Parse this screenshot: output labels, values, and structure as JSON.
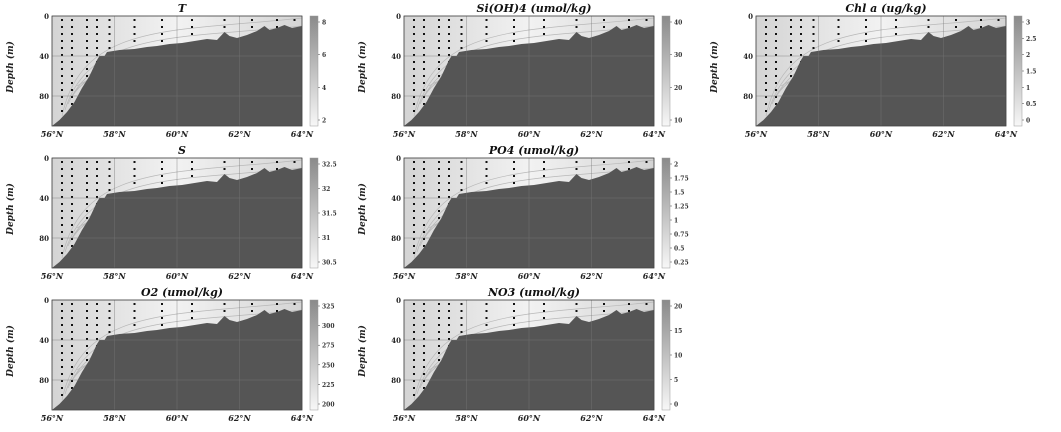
{
  "chart_data": [
    {
      "type": "heatmap",
      "title": "T",
      "ylabel": "Depth (m)",
      "x_ticks": [
        "56°N",
        "58°N",
        "60°N",
        "62°N",
        "64°N"
      ],
      "y_ticks": [
        "0",
        "40",
        "80"
      ],
      "colorbar_ticks": [
        "8",
        "6",
        "4",
        "2"
      ],
      "xlim": [
        56,
        64
      ],
      "ylim": [
        0,
        110
      ]
    },
    {
      "type": "heatmap",
      "title": "Si(OH)4 (umol/kg)",
      "ylabel": "Depth (m)",
      "x_ticks": [
        "56°N",
        "58°N",
        "60°N",
        "62°N",
        "64°N"
      ],
      "y_ticks": [
        "0",
        "40",
        "80"
      ],
      "colorbar_ticks": [
        "40",
        "30",
        "20",
        "10"
      ],
      "xlim": [
        56,
        64
      ],
      "ylim": [
        0,
        110
      ]
    },
    {
      "type": "heatmap",
      "title": "Chl a (ug/kg)",
      "ylabel": "Depth (m)",
      "x_ticks": [
        "56°N",
        "58°N",
        "60°N",
        "62°N",
        "64°N"
      ],
      "y_ticks": [
        "0",
        "40",
        "80"
      ],
      "colorbar_ticks": [
        "3",
        "2.5",
        "2",
        "1.5",
        "1",
        "0.5",
        "0"
      ],
      "xlim": [
        56,
        64
      ],
      "ylim": [
        0,
        110
      ]
    },
    {
      "type": "heatmap",
      "title": "S",
      "ylabel": "Depth (m)",
      "x_ticks": [
        "56°N",
        "58°N",
        "60°N",
        "62°N",
        "64°N"
      ],
      "y_ticks": [
        "0",
        "40",
        "80"
      ],
      "colorbar_ticks": [
        "32.5",
        "32",
        "31.5",
        "31",
        "30.5"
      ],
      "xlim": [
        56,
        64
      ],
      "ylim": [
        0,
        110
      ]
    },
    {
      "type": "heatmap",
      "title": "PO4 (umol/kg)",
      "ylabel": "Depth (m)",
      "x_ticks": [
        "56°N",
        "58°N",
        "60°N",
        "62°N",
        "64°N"
      ],
      "y_ticks": [
        "0",
        "40",
        "80"
      ],
      "colorbar_ticks": [
        "2",
        "1.75",
        "1.5",
        "1.25",
        "1",
        "0.75",
        "0.5",
        "0.25"
      ],
      "xlim": [
        56,
        64
      ],
      "ylim": [
        0,
        110
      ]
    },
    {
      "type": "heatmap",
      "title": "O2 (umol/kg)",
      "ylabel": "Depth (m)",
      "x_ticks": [
        "56°N",
        "58°N",
        "60°N",
        "62°N",
        "64°N"
      ],
      "y_ticks": [
        "0",
        "40",
        "80"
      ],
      "colorbar_ticks": [
        "325",
        "300",
        "275",
        "250",
        "225",
        "200"
      ],
      "xlim": [
        56,
        64
      ],
      "ylim": [
        0,
        110
      ]
    },
    {
      "type": "heatmap",
      "title": "NO3 (umol/kg)",
      "ylabel": "Depth (m)",
      "x_ticks": [
        "56°N",
        "58°N",
        "60°N",
        "62°N",
        "64°N"
      ],
      "y_ticks": [
        "0",
        "40",
        "80"
      ],
      "colorbar_ticks": [
        "20",
        "15",
        "10",
        "5",
        "0"
      ],
      "xlim": [
        56,
        64
      ],
      "ylim": [
        0,
        110
      ]
    }
  ],
  "colors": {
    "bottom": "#555555",
    "water_light": "#f2f2f2",
    "water_mid": "#d4d4d4",
    "contour": "#b8b8b8",
    "station_dot": "#111111"
  }
}
